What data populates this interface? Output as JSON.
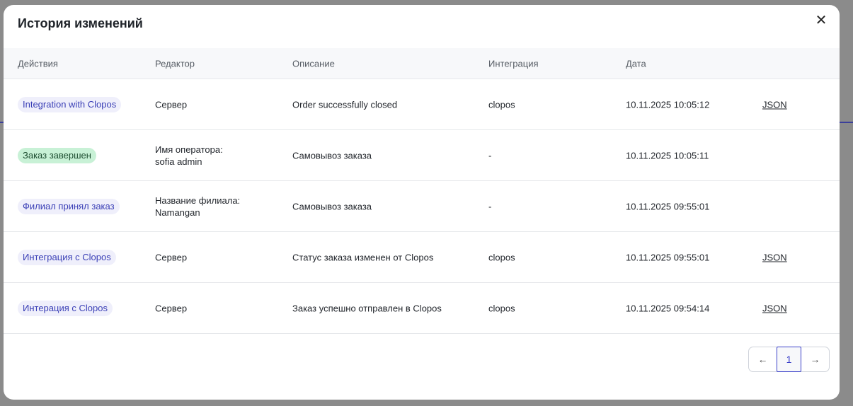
{
  "modal": {
    "title": "История изменений",
    "close_icon": "close-icon"
  },
  "columns": [
    "Действия",
    "Редактор",
    "Описание",
    "Интеграция",
    "Дата",
    ""
  ],
  "rows": [
    {
      "action": "Integration with Clopos",
      "action_style": "integration",
      "editor": [
        "Сервер"
      ],
      "description": "Order successfully closed",
      "integration": "clopos",
      "date": "10.11.2025 10:05:12",
      "link": "JSON"
    },
    {
      "action": "Заказ завершен",
      "action_style": "done",
      "editor": [
        "Имя оператора:",
        "sofia admin"
      ],
      "description": "Самовывоз заказа",
      "integration": "-",
      "date": "10.11.2025 10:05:11",
      "link": ""
    },
    {
      "action": "Филиал принял заказ",
      "action_style": "integration",
      "editor": [
        "Название филиала:",
        "Namangan"
      ],
      "description": "Самовывоз заказа",
      "integration": "-",
      "date": "10.11.2025 09:55:01",
      "link": ""
    },
    {
      "action": "Интеграция с Clopos",
      "action_style": "integration",
      "editor": [
        "Сервер"
      ],
      "description": "Статус заказа изменен от Clopos",
      "integration": "clopos",
      "date": "10.11.2025 09:55:01",
      "link": "JSON"
    },
    {
      "action": "Интерация с Clopos",
      "action_style": "integration",
      "editor": [
        "Сервер"
      ],
      "description": "Заказ успешно отправлен в Clopos",
      "integration": "clopos",
      "date": "10.11.2025 09:54:14",
      "link": "JSON"
    }
  ],
  "pagination": {
    "prev": "←",
    "current": "1",
    "next": "→"
  },
  "colors": {
    "badge_integration_bg": "#efeffb",
    "badge_integration_text": "#3a3fb6",
    "badge_done_bg": "#c8f1d6",
    "accent": "#3b40c9"
  }
}
